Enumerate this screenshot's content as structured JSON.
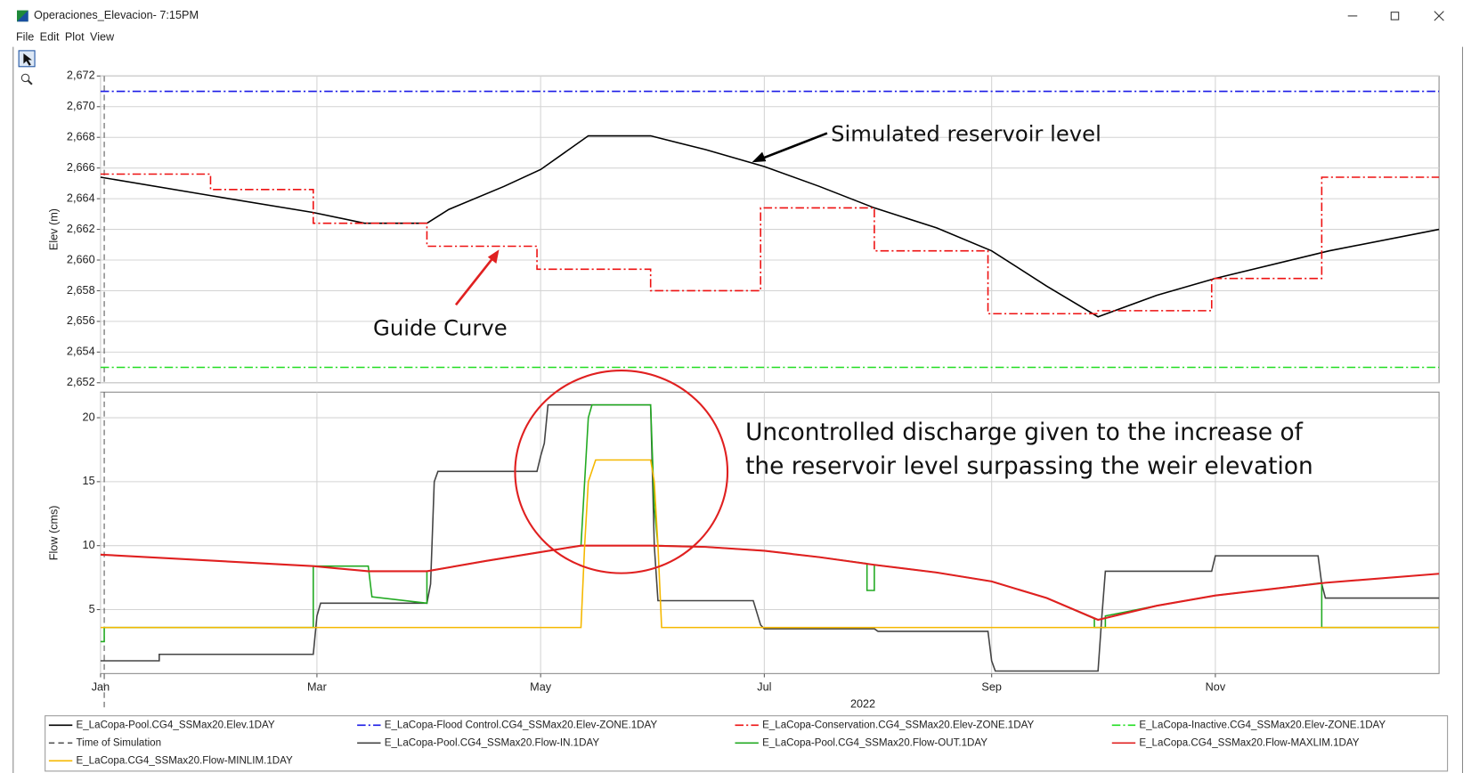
{
  "window": {
    "title": "Operaciones_Elevacion- 7:15PM",
    "menu": [
      "File",
      "Edit",
      "Plot",
      "View"
    ]
  },
  "annotations": {
    "simulated": "Simulated reservoir level",
    "guide": "Guide Curve",
    "discharge": [
      "Uncontrolled discharge given to the increase of",
      "the reservoir level surpassing the weir elevation"
    ]
  },
  "chart_data": [
    {
      "type": "line",
      "ylabel": "Elev (m)",
      "xlim": [
        0,
        365
      ],
      "ylim": [
        2652,
        2672
      ],
      "yticks": [
        {
          "value": 2652,
          "label": "2,652"
        },
        {
          "value": 2654,
          "label": "2,654"
        },
        {
          "value": 2656,
          "label": "2,656"
        },
        {
          "value": 2658,
          "label": "2,658"
        },
        {
          "value": 2660,
          "label": "2,660"
        },
        {
          "value": 2662,
          "label": "2,662"
        },
        {
          "value": 2664,
          "label": "2,664"
        },
        {
          "value": 2666,
          "label": "2,666"
        },
        {
          "value": 2668,
          "label": "2,668"
        },
        {
          "value": 2670,
          "label": "2,670"
        },
        {
          "value": 2672,
          "label": "2,672"
        }
      ],
      "grid": true,
      "vlines": [
        {
          "name": "Time of Simulation",
          "x": 1,
          "color": "#555555",
          "linestyle": "dashed"
        }
      ],
      "series": [
        {
          "name": "E_LaCopa-Pool.CG4_SSMax20.Elev.1DAY",
          "color": "#000000",
          "linestyle": "solid",
          "x": [
            0,
            30,
            58,
            72,
            89,
            95,
            110,
            120,
            133,
            150,
            165,
            181,
            196,
            211,
            228,
            243,
            258,
            272,
            288,
            304,
            335,
            365
          ],
          "values": [
            2665.4,
            2664.2,
            2663.1,
            2662.4,
            2662.4,
            2663.3,
            2664.8,
            2665.9,
            2668.1,
            2668.1,
            2667.2,
            2666.1,
            2664.8,
            2663.4,
            2662.1,
            2660.6,
            2658.3,
            2656.3,
            2657.7,
            2658.8,
            2660.6,
            2662.0
          ]
        },
        {
          "name": "E_LaCopa-Flood Control.CG4_SSMax20.Elev-ZONE.1DAY",
          "color": "#1a1ae6",
          "linestyle": "dashdot",
          "x": [
            0,
            365
          ],
          "values": [
            2671,
            2671
          ]
        },
        {
          "name": "E_LaCopa-Conservation.CG4_SSMax20.Elev-ZONE.1DAY",
          "color": "#ee1111",
          "linestyle": "dashdot",
          "x": [
            0,
            30,
            30,
            58,
            58,
            89,
            89,
            119,
            119,
            150,
            150,
            180,
            180,
            211,
            211,
            242,
            242,
            272,
            272,
            303,
            303,
            333,
            333,
            365
          ],
          "values": [
            2665.6,
            2665.6,
            2664.6,
            2664.6,
            2662.4,
            2662.4,
            2660.9,
            2660.9,
            2659.4,
            2659.4,
            2658.0,
            2658.0,
            2663.4,
            2663.4,
            2660.6,
            2660.6,
            2656.5,
            2656.5,
            2656.7,
            2656.7,
            2658.8,
            2658.8,
            2665.4,
            2665.4
          ]
        },
        {
          "name": "E_LaCopa-Inactive.CG4_SSMax20.Elev-ZONE.1DAY",
          "color": "#22dd22",
          "linestyle": "dashdot",
          "x": [
            0,
            365
          ],
          "values": [
            2653,
            2653
          ]
        }
      ]
    },
    {
      "type": "line",
      "ylabel": "Flow (cms)",
      "xlabel": "2022",
      "xlim": [
        0,
        365
      ],
      "xticks": [
        {
          "value": 0,
          "label": "Jan"
        },
        {
          "value": 59,
          "label": "Mar"
        },
        {
          "value": 120,
          "label": "May"
        },
        {
          "value": 181,
          "label": "Jul"
        },
        {
          "value": 243,
          "label": "Sep"
        },
        {
          "value": 304,
          "label": "Nov"
        }
      ],
      "ylim": [
        0,
        22
      ],
      "yticks": [
        5,
        10,
        15,
        20
      ],
      "grid": true,
      "series": [
        {
          "name": "E_LaCopa-Pool.CG4_SSMax20.Flow-IN.1DAY",
          "color": "#444444",
          "linestyle": "solid",
          "x": [
            0,
            16,
            16,
            58,
            59,
            60,
            89,
            90,
            91,
            92,
            119,
            120,
            121,
            122,
            150,
            151,
            152,
            178,
            180,
            181,
            211,
            212,
            242,
            243,
            244,
            272,
            273,
            274,
            303,
            304,
            332,
            333,
            334,
            365
          ],
          "values": [
            1,
            1,
            1.5,
            1.5,
            4.5,
            5.5,
            5.5,
            7,
            15,
            15.8,
            15.8,
            17,
            18,
            21,
            21,
            10,
            5.7,
            5.7,
            3.8,
            3.5,
            3.5,
            3.3,
            3.3,
            1,
            0.2,
            0.2,
            4.3,
            8,
            8,
            9.2,
            9.2,
            7,
            5.9,
            5.9
          ]
        },
        {
          "name": "E_LaCopa-Pool.CG4_SSMax20.Flow-OUT.1DAY",
          "color": "#22aa22",
          "linestyle": "solid",
          "x": [
            0,
            1,
            1,
            58,
            58,
            73,
            74,
            89,
            89,
            105,
            120,
            131,
            132,
            133,
            134,
            150,
            151,
            152,
            153,
            165,
            181,
            196,
            209,
            209,
            211,
            211,
            228,
            243,
            258,
            271,
            271,
            274,
            274,
            288,
            304,
            319,
            333,
            333,
            365
          ],
          "values": [
            2.5,
            2.5,
            3.6,
            3.6,
            8.4,
            8.4,
            6,
            5.5,
            8,
            8.8,
            9.5,
            10,
            15,
            20,
            21,
            21,
            13,
            10,
            10,
            9.9,
            9.6,
            9.1,
            8.6,
            6.5,
            6.5,
            8.5,
            7.9,
            7.2,
            5.9,
            4.3,
            3.6,
            3.6,
            4.5,
            5.3,
            6.1,
            6.6,
            7.1,
            3.6,
            3.6
          ]
        },
        {
          "name": "E_LaCopa.CG4_SSMax20.Flow-MAXLIM.1DAY",
          "color": "#e02020",
          "linestyle": "solid",
          "x": [
            0,
            58,
            73,
            89,
            105,
            120,
            131,
            150,
            165,
            181,
            196,
            211,
            228,
            243,
            258,
            272,
            288,
            304,
            319,
            334,
            365
          ],
          "values": [
            9.3,
            8.4,
            8.0,
            8.0,
            8.8,
            9.5,
            10,
            10,
            9.9,
            9.6,
            9.1,
            8.5,
            7.9,
            7.2,
            5.9,
            4.2,
            5.3,
            6.1,
            6.6,
            7.1,
            7.8
          ]
        },
        {
          "name": "E_LaCopa.CG4_SSMax20.Flow-MINLIM.1DAY",
          "color": "#f5b800",
          "linestyle": "solid",
          "x": [
            0,
            131,
            132,
            133,
            135,
            150,
            151,
            152,
            153,
            365
          ],
          "values": [
            3.6,
            3.6,
            10,
            15,
            16.7,
            16.7,
            15,
            10,
            3.6,
            3.6
          ]
        }
      ]
    }
  ]
}
